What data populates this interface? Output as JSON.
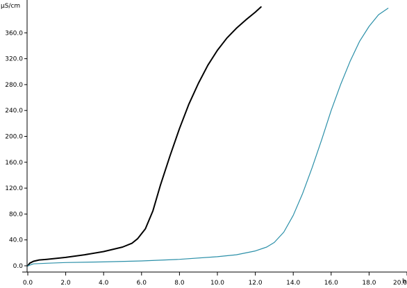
{
  "chart_data": {
    "type": "line",
    "title": "",
    "xlabel": "",
    "ylabel": "",
    "x_unit": "h",
    "y_unit": "µS/cm",
    "xlim": [
      0,
      20
    ],
    "ylim": [
      0,
      400
    ],
    "xticks": [
      0,
      2,
      4,
      6,
      8,
      10,
      12,
      14,
      16,
      18,
      20
    ],
    "xtick_labels": [
      "0.0",
      "2.0",
      "4.0",
      "6.0",
      "8.0",
      "10.0",
      "12.0",
      "14.0",
      "16.0",
      "18.0",
      "20.0"
    ],
    "yticks": [
      0,
      40,
      80,
      120,
      160,
      200,
      240,
      280,
      320,
      360
    ],
    "ytick_labels": [
      "0.0",
      "40.0",
      "80.0",
      "120.0",
      "160.0",
      "200.0",
      "240.0",
      "280.0",
      "320.0",
      "360.0"
    ],
    "grid": false,
    "series": [
      {
        "color": "#000000",
        "points": [
          [
            0.0,
            0.0
          ],
          [
            0.1,
            4.0
          ],
          [
            0.3,
            7.0
          ],
          [
            0.6,
            9.0
          ],
          [
            1.0,
            10.0
          ],
          [
            2.0,
            13.0
          ],
          [
            3.0,
            17.0
          ],
          [
            4.0,
            22.0
          ],
          [
            5.0,
            29.0
          ],
          [
            5.5,
            35.0
          ],
          [
            5.8,
            42.0
          ],
          [
            6.2,
            57.0
          ],
          [
            6.6,
            85.0
          ],
          [
            7.0,
            125.0
          ],
          [
            7.5,
            170.0
          ],
          [
            8.0,
            212.0
          ],
          [
            8.5,
            250.0
          ],
          [
            9.0,
            282.0
          ],
          [
            9.5,
            310.0
          ],
          [
            10.0,
            333.0
          ],
          [
            10.5,
            352.0
          ],
          [
            11.0,
            367.0
          ],
          [
            11.5,
            380.0
          ],
          [
            12.0,
            392.0
          ],
          [
            12.3,
            400.0
          ]
        ]
      },
      {
        "color": "#2a8fa8",
        "points": [
          [
            0.0,
            0.0
          ],
          [
            0.3,
            3.0
          ],
          [
            1.0,
            4.0
          ],
          [
            2.0,
            5.0
          ],
          [
            4.0,
            6.0
          ],
          [
            6.0,
            7.5
          ],
          [
            8.0,
            10.0
          ],
          [
            10.0,
            14.0
          ],
          [
            11.0,
            17.0
          ],
          [
            12.0,
            23.0
          ],
          [
            12.6,
            29.0
          ],
          [
            13.0,
            36.0
          ],
          [
            13.5,
            52.0
          ],
          [
            14.0,
            78.0
          ],
          [
            14.5,
            112.0
          ],
          [
            15.0,
            152.0
          ],
          [
            15.5,
            195.0
          ],
          [
            16.0,
            240.0
          ],
          [
            16.5,
            280.0
          ],
          [
            17.0,
            316.0
          ],
          [
            17.5,
            347.0
          ],
          [
            18.0,
            370.0
          ],
          [
            18.5,
            388.0
          ],
          [
            19.0,
            398.0
          ]
        ]
      }
    ]
  }
}
